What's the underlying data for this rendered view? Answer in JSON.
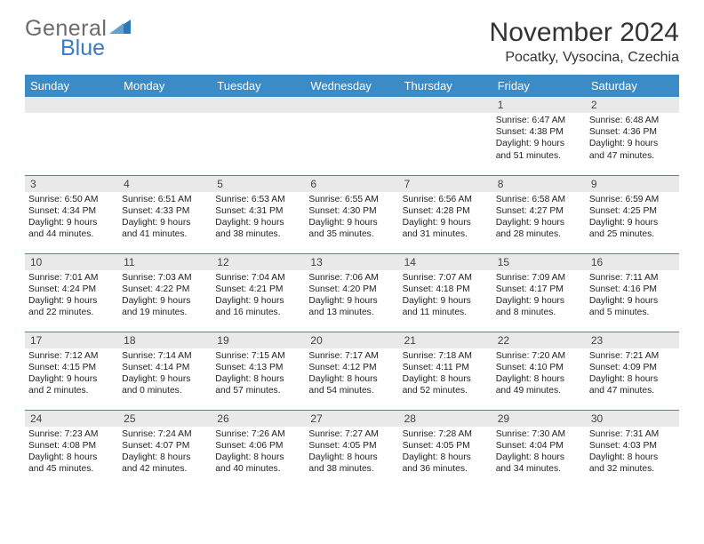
{
  "logo": {
    "text1": "General",
    "text2": "Blue",
    "triangle_color": "#2d78b8"
  },
  "title": "November 2024",
  "location": "Pocatky, Vysocina, Czechia",
  "colors": {
    "header_bg": "#3b8bc7",
    "daynum_bg": "#e9e9e9",
    "border": "#3b8bc7"
  },
  "day_headers": [
    "Sunday",
    "Monday",
    "Tuesday",
    "Wednesday",
    "Thursday",
    "Friday",
    "Saturday"
  ],
  "weeks": [
    [
      null,
      null,
      null,
      null,
      null,
      {
        "n": "1",
        "sr": "Sunrise: 6:47 AM",
        "ss": "Sunset: 4:38 PM",
        "d1": "Daylight: 9 hours",
        "d2": "and 51 minutes."
      },
      {
        "n": "2",
        "sr": "Sunrise: 6:48 AM",
        "ss": "Sunset: 4:36 PM",
        "d1": "Daylight: 9 hours",
        "d2": "and 47 minutes."
      }
    ],
    [
      {
        "n": "3",
        "sr": "Sunrise: 6:50 AM",
        "ss": "Sunset: 4:34 PM",
        "d1": "Daylight: 9 hours",
        "d2": "and 44 minutes."
      },
      {
        "n": "4",
        "sr": "Sunrise: 6:51 AM",
        "ss": "Sunset: 4:33 PM",
        "d1": "Daylight: 9 hours",
        "d2": "and 41 minutes."
      },
      {
        "n": "5",
        "sr": "Sunrise: 6:53 AM",
        "ss": "Sunset: 4:31 PM",
        "d1": "Daylight: 9 hours",
        "d2": "and 38 minutes."
      },
      {
        "n": "6",
        "sr": "Sunrise: 6:55 AM",
        "ss": "Sunset: 4:30 PM",
        "d1": "Daylight: 9 hours",
        "d2": "and 35 minutes."
      },
      {
        "n": "7",
        "sr": "Sunrise: 6:56 AM",
        "ss": "Sunset: 4:28 PM",
        "d1": "Daylight: 9 hours",
        "d2": "and 31 minutes."
      },
      {
        "n": "8",
        "sr": "Sunrise: 6:58 AM",
        "ss": "Sunset: 4:27 PM",
        "d1": "Daylight: 9 hours",
        "d2": "and 28 minutes."
      },
      {
        "n": "9",
        "sr": "Sunrise: 6:59 AM",
        "ss": "Sunset: 4:25 PM",
        "d1": "Daylight: 9 hours",
        "d2": "and 25 minutes."
      }
    ],
    [
      {
        "n": "10",
        "sr": "Sunrise: 7:01 AM",
        "ss": "Sunset: 4:24 PM",
        "d1": "Daylight: 9 hours",
        "d2": "and 22 minutes."
      },
      {
        "n": "11",
        "sr": "Sunrise: 7:03 AM",
        "ss": "Sunset: 4:22 PM",
        "d1": "Daylight: 9 hours",
        "d2": "and 19 minutes."
      },
      {
        "n": "12",
        "sr": "Sunrise: 7:04 AM",
        "ss": "Sunset: 4:21 PM",
        "d1": "Daylight: 9 hours",
        "d2": "and 16 minutes."
      },
      {
        "n": "13",
        "sr": "Sunrise: 7:06 AM",
        "ss": "Sunset: 4:20 PM",
        "d1": "Daylight: 9 hours",
        "d2": "and 13 minutes."
      },
      {
        "n": "14",
        "sr": "Sunrise: 7:07 AM",
        "ss": "Sunset: 4:18 PM",
        "d1": "Daylight: 9 hours",
        "d2": "and 11 minutes."
      },
      {
        "n": "15",
        "sr": "Sunrise: 7:09 AM",
        "ss": "Sunset: 4:17 PM",
        "d1": "Daylight: 9 hours",
        "d2": "and 8 minutes."
      },
      {
        "n": "16",
        "sr": "Sunrise: 7:11 AM",
        "ss": "Sunset: 4:16 PM",
        "d1": "Daylight: 9 hours",
        "d2": "and 5 minutes."
      }
    ],
    [
      {
        "n": "17",
        "sr": "Sunrise: 7:12 AM",
        "ss": "Sunset: 4:15 PM",
        "d1": "Daylight: 9 hours",
        "d2": "and 2 minutes."
      },
      {
        "n": "18",
        "sr": "Sunrise: 7:14 AM",
        "ss": "Sunset: 4:14 PM",
        "d1": "Daylight: 9 hours",
        "d2": "and 0 minutes."
      },
      {
        "n": "19",
        "sr": "Sunrise: 7:15 AM",
        "ss": "Sunset: 4:13 PM",
        "d1": "Daylight: 8 hours",
        "d2": "and 57 minutes."
      },
      {
        "n": "20",
        "sr": "Sunrise: 7:17 AM",
        "ss": "Sunset: 4:12 PM",
        "d1": "Daylight: 8 hours",
        "d2": "and 54 minutes."
      },
      {
        "n": "21",
        "sr": "Sunrise: 7:18 AM",
        "ss": "Sunset: 4:11 PM",
        "d1": "Daylight: 8 hours",
        "d2": "and 52 minutes."
      },
      {
        "n": "22",
        "sr": "Sunrise: 7:20 AM",
        "ss": "Sunset: 4:10 PM",
        "d1": "Daylight: 8 hours",
        "d2": "and 49 minutes."
      },
      {
        "n": "23",
        "sr": "Sunrise: 7:21 AM",
        "ss": "Sunset: 4:09 PM",
        "d1": "Daylight: 8 hours",
        "d2": "and 47 minutes."
      }
    ],
    [
      {
        "n": "24",
        "sr": "Sunrise: 7:23 AM",
        "ss": "Sunset: 4:08 PM",
        "d1": "Daylight: 8 hours",
        "d2": "and 45 minutes."
      },
      {
        "n": "25",
        "sr": "Sunrise: 7:24 AM",
        "ss": "Sunset: 4:07 PM",
        "d1": "Daylight: 8 hours",
        "d2": "and 42 minutes."
      },
      {
        "n": "26",
        "sr": "Sunrise: 7:26 AM",
        "ss": "Sunset: 4:06 PM",
        "d1": "Daylight: 8 hours",
        "d2": "and 40 minutes."
      },
      {
        "n": "27",
        "sr": "Sunrise: 7:27 AM",
        "ss": "Sunset: 4:05 PM",
        "d1": "Daylight: 8 hours",
        "d2": "and 38 minutes."
      },
      {
        "n": "28",
        "sr": "Sunrise: 7:28 AM",
        "ss": "Sunset: 4:05 PM",
        "d1": "Daylight: 8 hours",
        "d2": "and 36 minutes."
      },
      {
        "n": "29",
        "sr": "Sunrise: 7:30 AM",
        "ss": "Sunset: 4:04 PM",
        "d1": "Daylight: 8 hours",
        "d2": "and 34 minutes."
      },
      {
        "n": "30",
        "sr": "Sunrise: 7:31 AM",
        "ss": "Sunset: 4:03 PM",
        "d1": "Daylight: 8 hours",
        "d2": "and 32 minutes."
      }
    ]
  ]
}
